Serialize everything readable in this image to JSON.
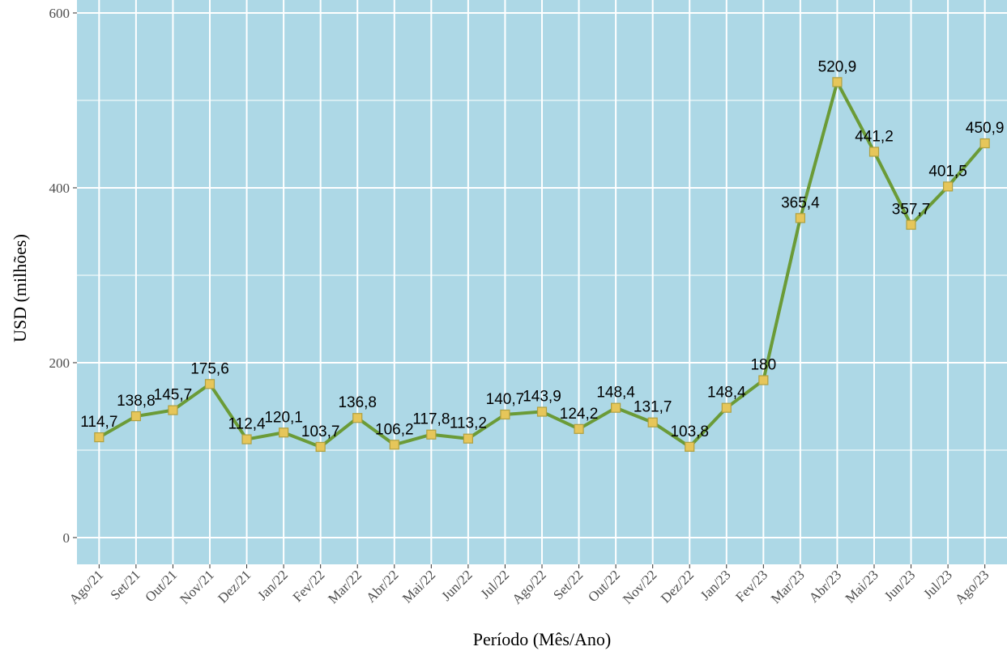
{
  "chart_data": {
    "type": "line",
    "x_label": "Período (Mês/Ano)",
    "y_label": "USD (milhões)",
    "categories": [
      "Ago/21",
      "Set/21",
      "Out/21",
      "Nov/21",
      "Dez/21",
      "Jan/22",
      "Fev/22",
      "Mar/22",
      "Abr/22",
      "Mai/22",
      "Jun/22",
      "Jul/22",
      "Ago/22",
      "Set/22",
      "Out/22",
      "Nov/22",
      "Dez/22",
      "Jan/23",
      "Fev/23",
      "Mar/23",
      "Abr/23",
      "Mai/23",
      "Jun/23",
      "Jul/23",
      "Ago/23"
    ],
    "series": [
      {
        "color": "#6b9b37",
        "marker_fill": "#e6c65a",
        "values": [
          114.7,
          138.8,
          145.7,
          175.6,
          112.4,
          120.1,
          103.7,
          136.8,
          106.2,
          117.8,
          113.2,
          140.7,
          143.9,
          124.2,
          148.4,
          131.7,
          103.8,
          148.4,
          180,
          365.4,
          520.9,
          441.2,
          357.7,
          401.5,
          450.9
        ],
        "value_labels": [
          "114,7",
          "138,8",
          "145,7",
          "175,6",
          "112,4",
          "120,1",
          "103,7",
          "136,8",
          "106,2",
          "117,8",
          "113,2",
          "140,7",
          "143,9",
          "124,2",
          "148,4",
          "131,7",
          "103,8",
          "148,4",
          "180",
          "365,4",
          "520,9",
          "441,2",
          "357,7",
          "401,5",
          "450,9"
        ]
      }
    ],
    "ylim": [
      -30.6,
      614.8
    ],
    "yticks": [
      0,
      200,
      400,
      600
    ],
    "y_minor_grid": [
      100,
      300,
      500
    ],
    "grid": true,
    "panel_color": "#add8e6"
  }
}
